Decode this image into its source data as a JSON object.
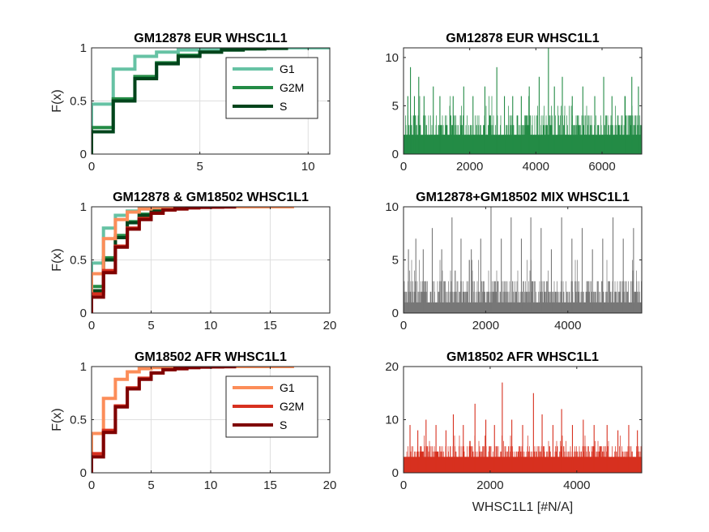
{
  "figure": {
    "xlabel_bottom_right": "WHSC1L1 [#N/A]"
  },
  "chart_data": [
    {
      "type": "line",
      "subtype": "ecdf-step",
      "title": "GM12878 EUR WHSC1L1",
      "ylabel": "F(x)",
      "xlim": [
        0,
        11
      ],
      "ylim": [
        0,
        1
      ],
      "xticks": [
        0,
        5,
        10
      ],
      "yticks": [
        0,
        0.5,
        1
      ],
      "grid": true,
      "legend": "top-right",
      "series": [
        {
          "name": "G1",
          "color": "#66c2a4",
          "x": [
            0,
            1,
            2,
            3,
            4,
            5,
            6,
            7,
            8,
            9,
            10,
            11
          ],
          "y": [
            0.47,
            0.8,
            0.92,
            0.96,
            0.98,
            0.99,
            0.995,
            1,
            1,
            1,
            1,
            1
          ]
        },
        {
          "name": "G2M",
          "color": "#238b45",
          "x": [
            0,
            1,
            2,
            3,
            4,
            5,
            6,
            7,
            8,
            9
          ],
          "y": [
            0.25,
            0.52,
            0.73,
            0.86,
            0.93,
            0.96,
            0.98,
            0.99,
            0.995,
            1
          ]
        },
        {
          "name": "S",
          "color": "#00441b",
          "x": [
            0,
            1,
            2,
            3,
            4,
            5,
            6,
            7,
            8,
            9
          ],
          "y": [
            0.21,
            0.5,
            0.71,
            0.85,
            0.92,
            0.96,
            0.98,
            0.99,
            0.995,
            1
          ]
        }
      ]
    },
    {
      "type": "bar",
      "title": "GM12878 EUR WHSC1L1",
      "xlim": [
        0,
        7200
      ],
      "ylim": [
        0,
        11
      ],
      "xticks": [
        0,
        2000,
        4000,
        6000
      ],
      "yticks": [
        0,
        5,
        10
      ],
      "color": "#238b45",
      "n": 7200,
      "baseline_max": 4,
      "spikes": [
        [
          130,
          6
        ],
        [
          210,
          9
        ],
        [
          330,
          6
        ],
        [
          460,
          8
        ],
        [
          620,
          6
        ],
        [
          900,
          7
        ],
        [
          1100,
          6
        ],
        [
          1500,
          6
        ],
        [
          1820,
          7
        ],
        [
          2100,
          6
        ],
        [
          2460,
          7
        ],
        [
          2820,
          9
        ],
        [
          3050,
          6
        ],
        [
          3300,
          6
        ],
        [
          3560,
          6
        ],
        [
          3800,
          7
        ],
        [
          4100,
          8
        ],
        [
          4380,
          11
        ],
        [
          4560,
          7
        ],
        [
          4800,
          8
        ],
        [
          5100,
          6
        ],
        [
          5420,
          7
        ],
        [
          5780,
          6
        ],
        [
          6050,
          8
        ],
        [
          6300,
          6
        ],
        [
          6700,
          6
        ],
        [
          6900,
          8
        ],
        [
          7100,
          7
        ]
      ]
    },
    {
      "type": "line",
      "subtype": "ecdf-step",
      "title": "GM12878 & GM18502 WHSC1L1",
      "ylabel": "F(x)",
      "xlim": [
        0,
        20
      ],
      "ylim": [
        0,
        1
      ],
      "xticks": [
        0,
        5,
        10,
        15,
        20
      ],
      "yticks": [
        0,
        0.5,
        1
      ],
      "grid": true,
      "series": [
        {
          "color": "#66c2a4",
          "x": [
            0,
            1,
            2,
            3,
            4,
            5,
            6,
            7,
            8,
            9,
            10,
            11
          ],
          "y": [
            0.47,
            0.8,
            0.92,
            0.96,
            0.98,
            0.99,
            0.995,
            1,
            1,
            1,
            1,
            1
          ]
        },
        {
          "color": "#238b45",
          "x": [
            0,
            1,
            2,
            3,
            4,
            5,
            6,
            7,
            8,
            9
          ],
          "y": [
            0.25,
            0.52,
            0.73,
            0.86,
            0.93,
            0.96,
            0.98,
            0.99,
            0.995,
            1
          ]
        },
        {
          "color": "#00441b",
          "x": [
            0,
            1,
            2,
            3,
            4,
            5,
            6,
            7,
            8,
            9
          ],
          "y": [
            0.21,
            0.5,
            0.71,
            0.85,
            0.92,
            0.96,
            0.98,
            0.99,
            0.995,
            1
          ]
        },
        {
          "color": "#fc8d59",
          "x": [
            0,
            1,
            2,
            3,
            4,
            5,
            6,
            7,
            8,
            9,
            10,
            11,
            12,
            13,
            14,
            15,
            16,
            17
          ],
          "y": [
            0.37,
            0.7,
            0.88,
            0.95,
            0.98,
            0.99,
            0.993,
            0.995,
            0.997,
            0.998,
            0.999,
            0.999,
            1,
            1,
            1,
            1,
            1,
            1
          ]
        },
        {
          "color": "#d7301f",
          "x": [
            0,
            1,
            2,
            3,
            4,
            5,
            6,
            7,
            8,
            9,
            10,
            11,
            12
          ],
          "y": [
            0.18,
            0.4,
            0.63,
            0.8,
            0.89,
            0.94,
            0.97,
            0.98,
            0.99,
            0.995,
            0.997,
            0.999,
            1
          ]
        },
        {
          "color": "#7f0000",
          "x": [
            0,
            1,
            2,
            3,
            4,
            5,
            6,
            7,
            8,
            9,
            10,
            11,
            12
          ],
          "y": [
            0.15,
            0.38,
            0.62,
            0.79,
            0.88,
            0.94,
            0.97,
            0.98,
            0.99,
            0.995,
            0.997,
            0.999,
            1
          ]
        }
      ]
    },
    {
      "type": "bar",
      "title": "GM12878+GM18502 MIX WHSC1L1",
      "xlim": [
        0,
        5800
      ],
      "ylim": [
        0,
        10
      ],
      "xticks": [
        0,
        2000,
        4000
      ],
      "yticks": [
        0,
        5,
        10
      ],
      "color": "#777777",
      "n": 5800,
      "baseline_max": 3,
      "spikes": [
        [
          120,
          6
        ],
        [
          300,
          7
        ],
        [
          480,
          6
        ],
        [
          700,
          8
        ],
        [
          930,
          6
        ],
        [
          1180,
          9
        ],
        [
          1400,
          7
        ],
        [
          1650,
          6
        ],
        [
          1880,
          7
        ],
        [
          2130,
          10
        ],
        [
          2380,
          7
        ],
        [
          2620,
          9
        ],
        [
          2870,
          7
        ],
        [
          3100,
          9
        ],
        [
          3350,
          8
        ],
        [
          3600,
          6
        ],
        [
          3850,
          9
        ],
        [
          4100,
          7
        ],
        [
          4350,
          8
        ],
        [
          4600,
          6
        ],
        [
          4850,
          7
        ],
        [
          5100,
          9
        ],
        [
          5350,
          7
        ],
        [
          5600,
          8
        ]
      ]
    },
    {
      "type": "line",
      "subtype": "ecdf-step",
      "title": "GM18502 AFR WHSC1L1",
      "ylabel": "F(x)",
      "xlim": [
        0,
        20
      ],
      "ylim": [
        0,
        1
      ],
      "xticks": [
        0,
        5,
        10,
        15,
        20
      ],
      "yticks": [
        0,
        0.5,
        1
      ],
      "grid": true,
      "legend": "top-right",
      "series": [
        {
          "name": "G1",
          "color": "#fc8d59",
          "x": [
            0,
            1,
            2,
            3,
            4,
            5,
            6,
            7,
            8,
            9,
            10,
            11,
            12,
            13,
            14,
            15,
            16,
            17
          ],
          "y": [
            0.37,
            0.7,
            0.88,
            0.95,
            0.98,
            0.99,
            0.993,
            0.995,
            0.997,
            0.998,
            0.999,
            0.999,
            1,
            1,
            1,
            1,
            1,
            1
          ]
        },
        {
          "name": "G2M",
          "color": "#d7301f",
          "x": [
            0,
            1,
            2,
            3,
            4,
            5,
            6,
            7,
            8,
            9,
            10,
            11,
            12
          ],
          "y": [
            0.18,
            0.4,
            0.63,
            0.8,
            0.89,
            0.94,
            0.97,
            0.98,
            0.99,
            0.995,
            0.997,
            0.999,
            1
          ]
        },
        {
          "name": "S",
          "color": "#7f0000",
          "x": [
            0,
            1,
            2,
            3,
            4,
            5,
            6,
            7,
            8,
            9,
            10,
            11,
            12
          ],
          "y": [
            0.15,
            0.38,
            0.62,
            0.79,
            0.88,
            0.94,
            0.97,
            0.98,
            0.99,
            0.995,
            0.997,
            0.999,
            1
          ]
        }
      ]
    },
    {
      "type": "bar",
      "title": "GM18502 AFR WHSC1L1",
      "xlabel": "WHSC1L1 [#N/A]",
      "xlim": [
        0,
        5500
      ],
      "ylim": [
        0,
        20
      ],
      "xticks": [
        0,
        2000,
        4000
      ],
      "yticks": [
        0,
        10,
        20
      ],
      "color": "#d7301f",
      "n": 5500,
      "baseline_max": 5,
      "spikes": [
        [
          150,
          9
        ],
        [
          330,
          8
        ],
        [
          520,
          10
        ],
        [
          750,
          9
        ],
        [
          980,
          8
        ],
        [
          1150,
          11
        ],
        [
          1380,
          9
        ],
        [
          1650,
          13
        ],
        [
          1900,
          10
        ],
        [
          2100,
          9
        ],
        [
          2280,
          17
        ],
        [
          2500,
          10
        ],
        [
          2750,
          9
        ],
        [
          3000,
          15
        ],
        [
          3200,
          11
        ],
        [
          3450,
          9
        ],
        [
          3650,
          12
        ],
        [
          3900,
          9
        ],
        [
          4150,
          10
        ],
        [
          4400,
          9
        ],
        [
          4700,
          9
        ],
        [
          4950,
          8
        ],
        [
          5200,
          9
        ],
        [
          5400,
          8
        ]
      ]
    }
  ]
}
